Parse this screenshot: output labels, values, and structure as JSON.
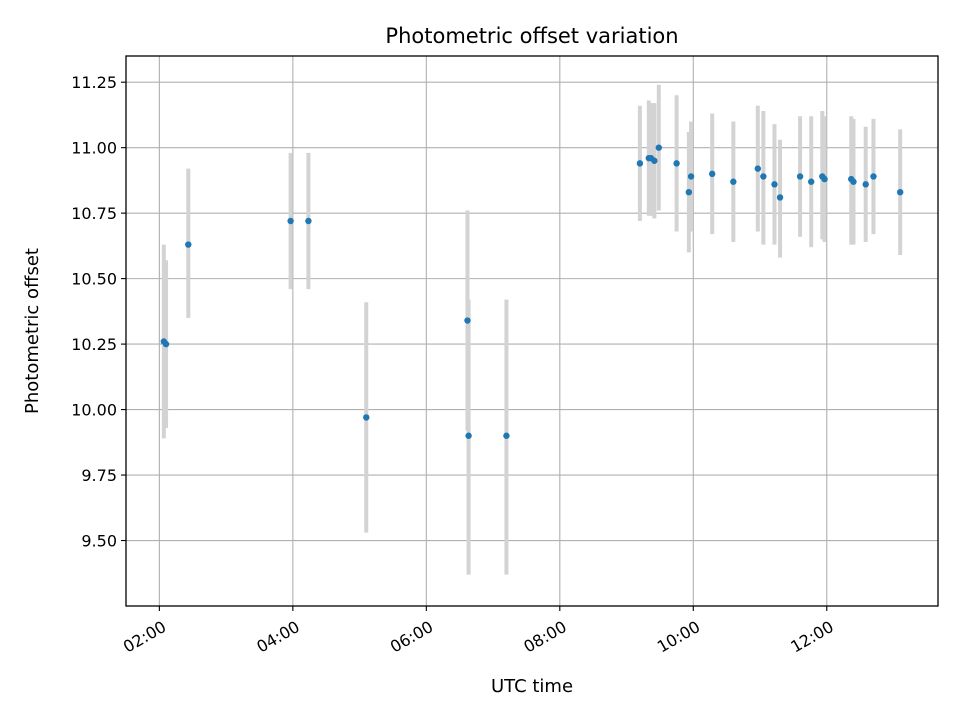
{
  "chart_data": {
    "type": "scatter",
    "title": "Photometric offset variation",
    "xlabel": "UTC time",
    "ylabel": "Photometric offset",
    "x_ticks": [
      "02:00",
      "04:00",
      "06:00",
      "08:00",
      "10:00",
      "12:00"
    ],
    "y_ticks": [
      "9.50",
      "9.75",
      "10.00",
      "10.25",
      "10.50",
      "10.75",
      "11.00",
      "11.25"
    ],
    "xlim": [
      "01:30",
      "13:40"
    ],
    "ylim": [
      9.25,
      11.35
    ],
    "grid": true,
    "colors": {
      "points": "#1f77b4",
      "errorbars": "#d3d3d3",
      "grid": "#b0b0b0"
    },
    "series": [
      {
        "points": [
          {
            "x": "02:04",
            "y": 10.26,
            "err_low": 9.89,
            "err_high": 10.63
          },
          {
            "x": "02:06",
            "y": 10.25,
            "err_low": 9.93,
            "err_high": 10.57
          },
          {
            "x": "02:26",
            "y": 10.63,
            "err_low": 10.35,
            "err_high": 10.92
          },
          {
            "x": "03:58",
            "y": 10.72,
            "err_low": 10.46,
            "err_high": 10.98
          },
          {
            "x": "04:14",
            "y": 10.72,
            "err_low": 10.46,
            "err_high": 10.98
          },
          {
            "x": "05:06",
            "y": 9.97,
            "err_low": 9.53,
            "err_high": 10.41
          },
          {
            "x": "06:37",
            "y": 10.34,
            "err_low": 9.92,
            "err_high": 10.76
          },
          {
            "x": "06:38",
            "y": 9.9,
            "err_low": 9.37,
            "err_high": 10.42
          },
          {
            "x": "07:12",
            "y": 9.9,
            "err_low": 9.37,
            "err_high": 10.42
          },
          {
            "x": "09:12",
            "y": 10.94,
            "err_low": 10.72,
            "err_high": 11.16
          },
          {
            "x": "09:20",
            "y": 10.96,
            "err_low": 10.74,
            "err_high": 11.18
          },
          {
            "x": "09:22",
            "y": 10.96,
            "err_low": 10.74,
            "err_high": 11.17
          },
          {
            "x": "09:25",
            "y": 10.95,
            "err_low": 10.73,
            "err_high": 11.17
          },
          {
            "x": "09:29",
            "y": 11.0,
            "err_low": 10.76,
            "err_high": 11.24
          },
          {
            "x": "09:45",
            "y": 10.94,
            "err_low": 10.68,
            "err_high": 11.2
          },
          {
            "x": "09:56",
            "y": 10.83,
            "err_low": 10.6,
            "err_high": 11.06
          },
          {
            "x": "09:58",
            "y": 10.89,
            "err_low": 10.68,
            "err_high": 11.1
          },
          {
            "x": "10:17",
            "y": 10.9,
            "err_low": 10.67,
            "err_high": 11.13
          },
          {
            "x": "10:36",
            "y": 10.87,
            "err_low": 10.64,
            "err_high": 11.1
          },
          {
            "x": "10:58",
            "y": 10.92,
            "err_low": 10.68,
            "err_high": 11.16
          },
          {
            "x": "11:03",
            "y": 10.89,
            "err_low": 10.63,
            "err_high": 11.14
          },
          {
            "x": "11:13",
            "y": 10.86,
            "err_low": 10.63,
            "err_high": 11.09
          },
          {
            "x": "11:18",
            "y": 10.81,
            "err_low": 10.58,
            "err_high": 11.03
          },
          {
            "x": "11:36",
            "y": 10.89,
            "err_low": 10.66,
            "err_high": 11.12
          },
          {
            "x": "11:46",
            "y": 10.87,
            "err_low": 10.62,
            "err_high": 11.12
          },
          {
            "x": "11:56",
            "y": 10.89,
            "err_low": 10.65,
            "err_high": 11.14
          },
          {
            "x": "11:58",
            "y": 10.88,
            "err_low": 10.64,
            "err_high": 11.12
          },
          {
            "x": "12:22",
            "y": 10.88,
            "err_low": 10.63,
            "err_high": 11.12
          },
          {
            "x": "12:24",
            "y": 10.87,
            "err_low": 10.63,
            "err_high": 11.11
          },
          {
            "x": "12:35",
            "y": 10.86,
            "err_low": 10.64,
            "err_high": 11.08
          },
          {
            "x": "12:42",
            "y": 10.89,
            "err_low": 10.67,
            "err_high": 11.11
          },
          {
            "x": "13:06",
            "y": 10.83,
            "err_low": 10.59,
            "err_high": 11.07
          }
        ]
      }
    ]
  }
}
